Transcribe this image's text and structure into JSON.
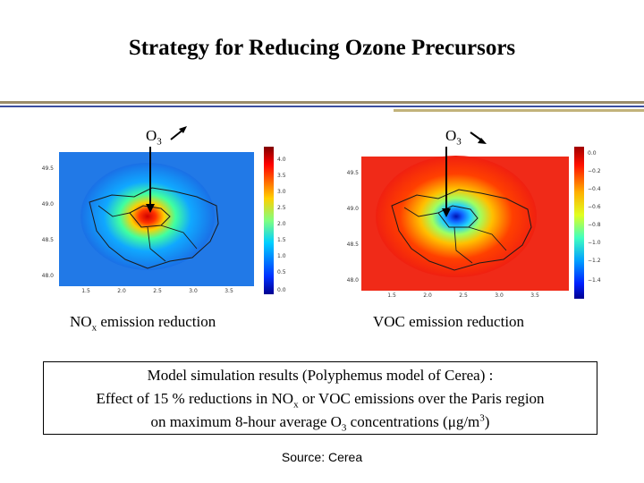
{
  "slide": {
    "title": "Strategy for Reducing Ozone Precursors",
    "left_panel": {
      "o3_base": "O",
      "o3_sub": "3",
      "arrow_direction": "up",
      "caption_main": "NO",
      "caption_sub": "x",
      "caption_rest": " emission reduction",
      "y_ticks": [
        "49.5",
        "49.0",
        "48.5",
        "48.0"
      ],
      "x_ticks": [
        "1.5",
        "2.0",
        "2.5",
        "3.0",
        "3.5"
      ],
      "colorbar_ticks": [
        "4.0",
        "3.5",
        "3.0",
        "2.5",
        "2.0",
        "1.5",
        "1.0",
        "0.5",
        "0.0"
      ]
    },
    "right_panel": {
      "o3_base": "O",
      "o3_sub": "3",
      "arrow_direction": "down",
      "caption": "VOC emission reduction",
      "y_ticks": [
        "49.5",
        "49.0",
        "48.5",
        "48.0"
      ],
      "x_ticks": [
        "1.5",
        "2.0",
        "2.5",
        "3.0",
        "3.5"
      ],
      "colorbar_ticks": [
        "0.0",
        "−0.2",
        "−0.4",
        "−0.6",
        "−0.8",
        "−1.0",
        "−1.2",
        "−1.4"
      ]
    },
    "box": {
      "line1": "Model simulation results (Polyphemus model of Cerea) :",
      "line2_a": "Effect of 15 % reductions in NO",
      "line2_sub": "x",
      "line2_b": " or VOC emissions over the Paris region",
      "line3_a": "on maximum 8-hour average O",
      "line3_sub": "3",
      "line3_b": " concentrations (μg/m",
      "line3_sup": "3",
      "line3_c": ")"
    },
    "source": "Source: Cerea"
  }
}
